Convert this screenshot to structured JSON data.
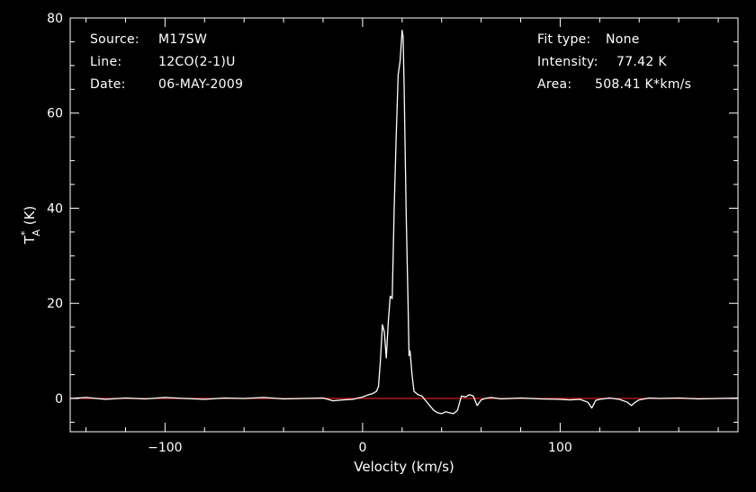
{
  "header": {
    "source_label": "Source:",
    "source_value": "M17SW",
    "line_label": "Line:",
    "line_value": "12CO(2-1)U",
    "date_label": "Date:",
    "date_value": "06-MAY-2009",
    "fit_label": "Fit type:",
    "fit_value": "None",
    "intensity_label": "Intensity:",
    "intensity_value": "77.42 K",
    "area_label": "Area:",
    "area_value": "508.41 K*km/s"
  },
  "colors": {
    "background": "#000000",
    "axes": "#ffffff",
    "spectrum": "#ffffff",
    "baseline": "#cc2020"
  },
  "chart_data": {
    "type": "line",
    "xlabel": "Velocity (km/s)",
    "ylabel": "T*A (K)",
    "xlim": [
      -148,
      190
    ],
    "ylim": [
      -7,
      80
    ],
    "xticks": [
      -100,
      0,
      100
    ],
    "xtick_labels": [
      "−100",
      "0",
      "100"
    ],
    "yticks": [
      0,
      20,
      40,
      60,
      80
    ],
    "ytick_labels": [
      "0",
      "20",
      "40",
      "60",
      "80"
    ],
    "grid": false,
    "baseline_value": 0,
    "series": [
      {
        "x": [
          -148,
          -140,
          -130,
          -120,
          -110,
          -100,
          -90,
          -80,
          -70,
          -60,
          -50,
          -40,
          -30,
          -20,
          -15,
          -10,
          -5,
          0,
          3,
          5,
          7,
          8,
          9,
          10,
          11,
          12,
          13,
          14,
          15,
          16,
          17,
          18,
          19,
          20,
          20.5,
          21,
          22,
          23,
          23.5,
          24,
          25,
          26,
          28,
          30,
          32,
          34,
          36,
          38,
          40,
          42,
          44,
          46,
          48,
          50,
          52,
          54,
          56,
          58,
          60,
          62,
          65,
          70,
          80,
          90,
          100,
          105,
          110,
          114,
          116,
          118,
          120,
          125,
          130,
          134,
          136,
          138,
          140,
          145,
          150,
          160,
          170,
          180,
          190
        ],
        "y": [
          0,
          0.2,
          -0.2,
          0.1,
          -0.1,
          0.2,
          0,
          -0.2,
          0.1,
          0,
          0.2,
          -0.1,
          0,
          0.1,
          -0.5,
          -0.3,
          -0.2,
          0.3,
          0.8,
          1,
          1.5,
          2.5,
          8,
          15.5,
          14,
          8.5,
          16,
          21.5,
          21,
          40,
          55,
          68,
          71,
          77.4,
          76,
          66,
          40,
          20,
          9,
          10,
          5,
          1.5,
          0.8,
          0.5,
          -0.5,
          -1.5,
          -2.5,
          -3,
          -3.2,
          -2.8,
          -3,
          -3.2,
          -2.5,
          0.5,
          0.3,
          0.8,
          0.5,
          -1.5,
          -0.3,
          0,
          0.2,
          -0.1,
          0.1,
          -0.1,
          -0.2,
          -0.3,
          -0.2,
          -0.8,
          -2,
          -0.4,
          -0.2,
          0.1,
          -0.2,
          -0.8,
          -1.5,
          -0.8,
          -0.3,
          0.1,
          0,
          0.1,
          -0.1,
          0,
          0.1
        ]
      }
    ]
  }
}
